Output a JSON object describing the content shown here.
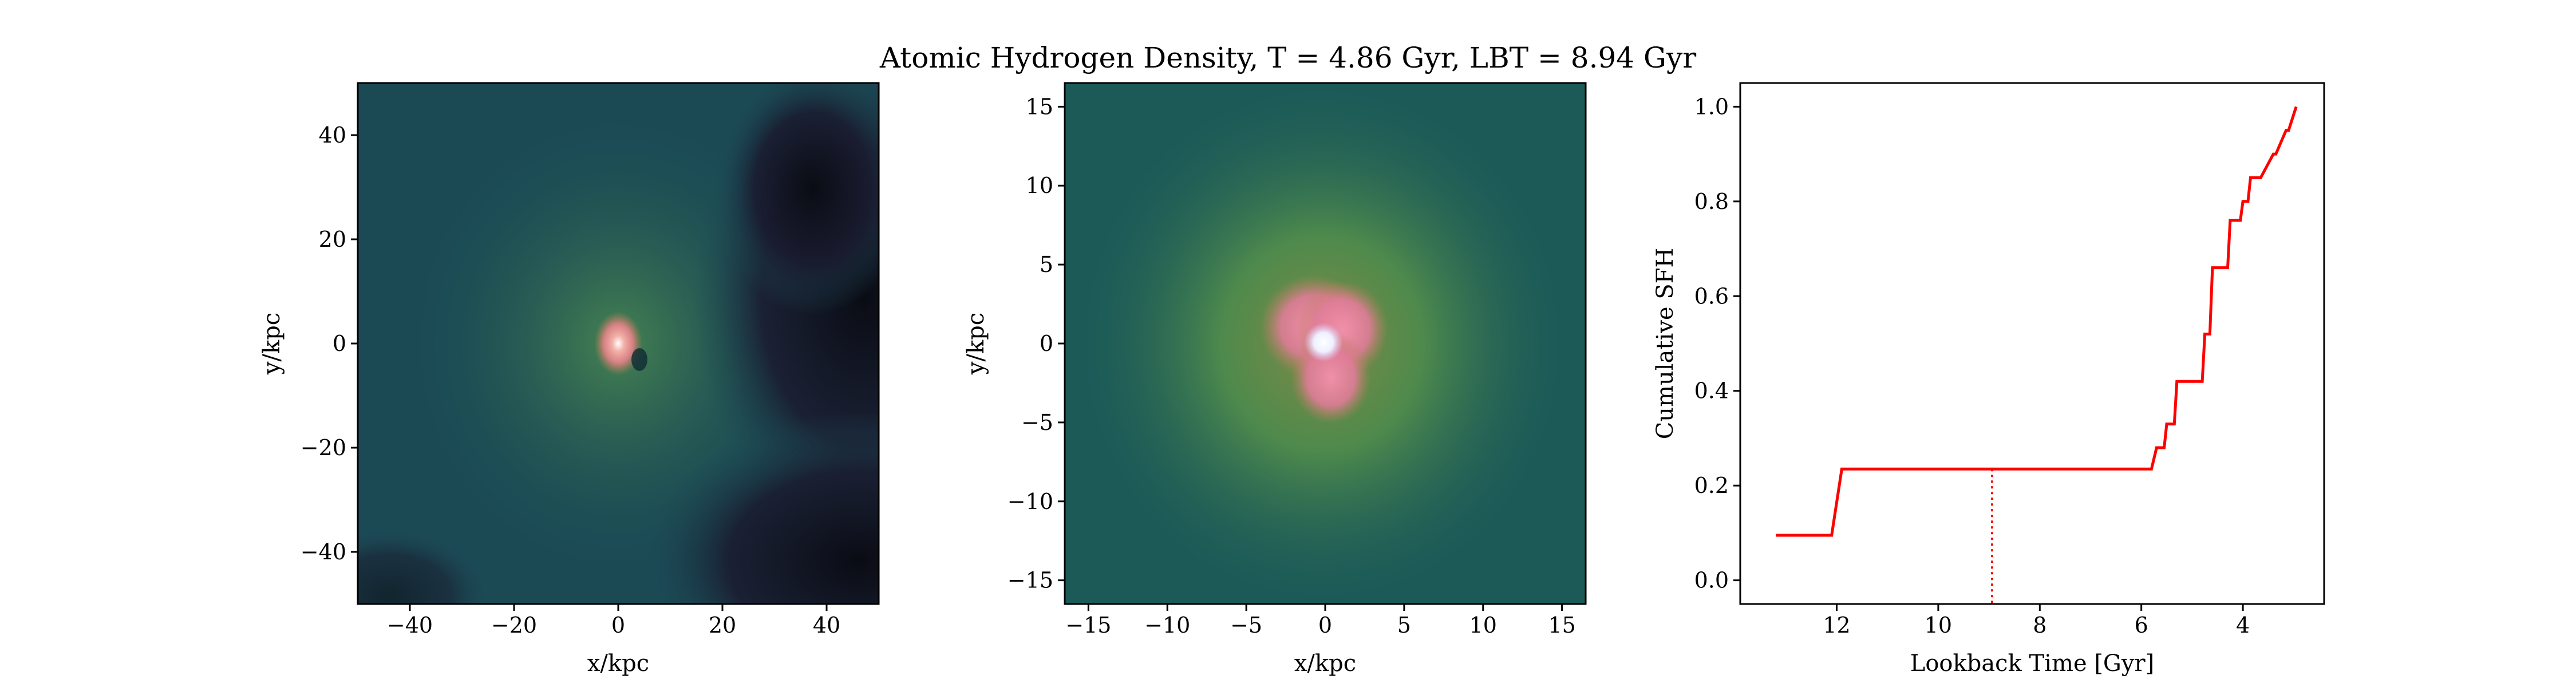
{
  "figure": {
    "title": "Atomic Hydrogen Density, T = 4.86 Gyr, LBT = 8.94 Gyr"
  },
  "chart_data": [
    {
      "type": "heatmap",
      "xlabel": "x/kpc",
      "ylabel": "y/kpc",
      "xlim": [
        -50,
        50
      ],
      "ylim": [
        -50,
        50
      ],
      "xticks": [
        -40,
        -20,
        0,
        20,
        40
      ],
      "yticks": [
        -40,
        -20,
        0,
        20,
        40
      ],
      "xtick_labels": [
        "−40",
        "−20",
        "0",
        "20",
        "40"
      ],
      "ytick_labels": [
        "−40",
        "−20",
        "0",
        "20",
        "40"
      ],
      "colors": {
        "background": "#1b4a55",
        "dark": "#0a0c14",
        "green": "#3f7e4e",
        "pink": "#e8828a",
        "core": "#ffffff"
      }
    },
    {
      "type": "heatmap",
      "xlabel": "x/kpc",
      "ylabel": "y/kpc",
      "xlim": [
        -16.5,
        16.5
      ],
      "ylim": [
        -16.5,
        16.5
      ],
      "xticks": [
        -15,
        -10,
        -5,
        0,
        5,
        10,
        15
      ],
      "yticks": [
        -15,
        -10,
        -5,
        0,
        5,
        10,
        15
      ],
      "xtick_labels": [
        "−15",
        "−10",
        "−5",
        "0",
        "5",
        "10",
        "15"
      ],
      "ytick_labels": [
        "−15",
        "−10",
        "−5",
        "0",
        "5",
        "10",
        "15"
      ],
      "colors": {
        "background": "#1c5a58",
        "green": "#4e8a4c",
        "olive": "#7e8a46",
        "pink": "#ea7d99",
        "core": "#ffffff"
      }
    },
    {
      "type": "line",
      "xlabel": "Lookback Time [Gyr]",
      "ylabel": "Cumulative SFH",
      "xlim": [
        13.9,
        2.4
      ],
      "ylim": [
        -0.05,
        1.05
      ],
      "xticks": [
        12,
        10,
        8,
        6,
        4
      ],
      "yticks": [
        0.0,
        0.2,
        0.4,
        0.6,
        0.8,
        1.0
      ],
      "xtick_labels": [
        "12",
        "10",
        "8",
        "6",
        "4"
      ],
      "ytick_labels": [
        "0.0",
        "0.2",
        "0.4",
        "0.6",
        "0.8",
        "1.0"
      ],
      "series": [
        {
          "color": "#ff0000",
          "x": [
            13.2,
            12.1,
            11.9,
            5.8,
            5.7,
            5.55,
            5.5,
            5.35,
            5.3,
            5.1,
            5.05,
            4.8,
            4.75,
            4.65,
            4.6,
            4.55,
            4.5,
            4.3,
            4.25,
            4.05,
            4.0,
            3.9,
            3.85,
            3.7,
            3.65,
            3.4,
            3.35,
            3.15,
            3.1,
            2.95
          ],
          "y": [
            0.095,
            0.095,
            0.235,
            0.235,
            0.28,
            0.28,
            0.33,
            0.33,
            0.42,
            0.42,
            0.42,
            0.42,
            0.52,
            0.52,
            0.66,
            0.66,
            0.66,
            0.66,
            0.76,
            0.76,
            0.8,
            0.8,
            0.85,
            0.85,
            0.85,
            0.9,
            0.9,
            0.95,
            0.95,
            1.0
          ]
        }
      ],
      "marker_line": {
        "x": 8.94,
        "y": 0.235,
        "style": "dotted",
        "color": "#ff0000"
      }
    }
  ]
}
